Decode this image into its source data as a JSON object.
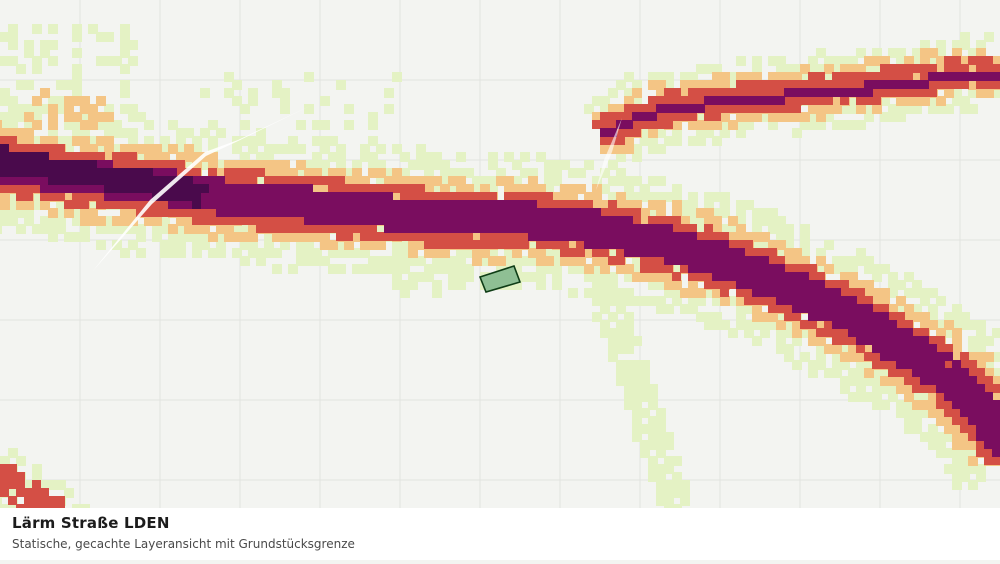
{
  "map": {
    "title": "Lärm Straße LDEN",
    "subtitle": "Statische, gecachte Layeransicht mit Grundstücksgrenze",
    "colors": {
      "background": "#f3f4f1",
      "grid": "#e2e3df",
      "band_very_low": "#e4f2c4",
      "band_low": "#f4c585",
      "band_medium": "#d44f45",
      "band_high": "#7a0d5f",
      "band_very_high": "#4a0a4c",
      "parcel_fill": "#8fbf94",
      "parcel_stroke": "#0f3d16"
    }
  }
}
